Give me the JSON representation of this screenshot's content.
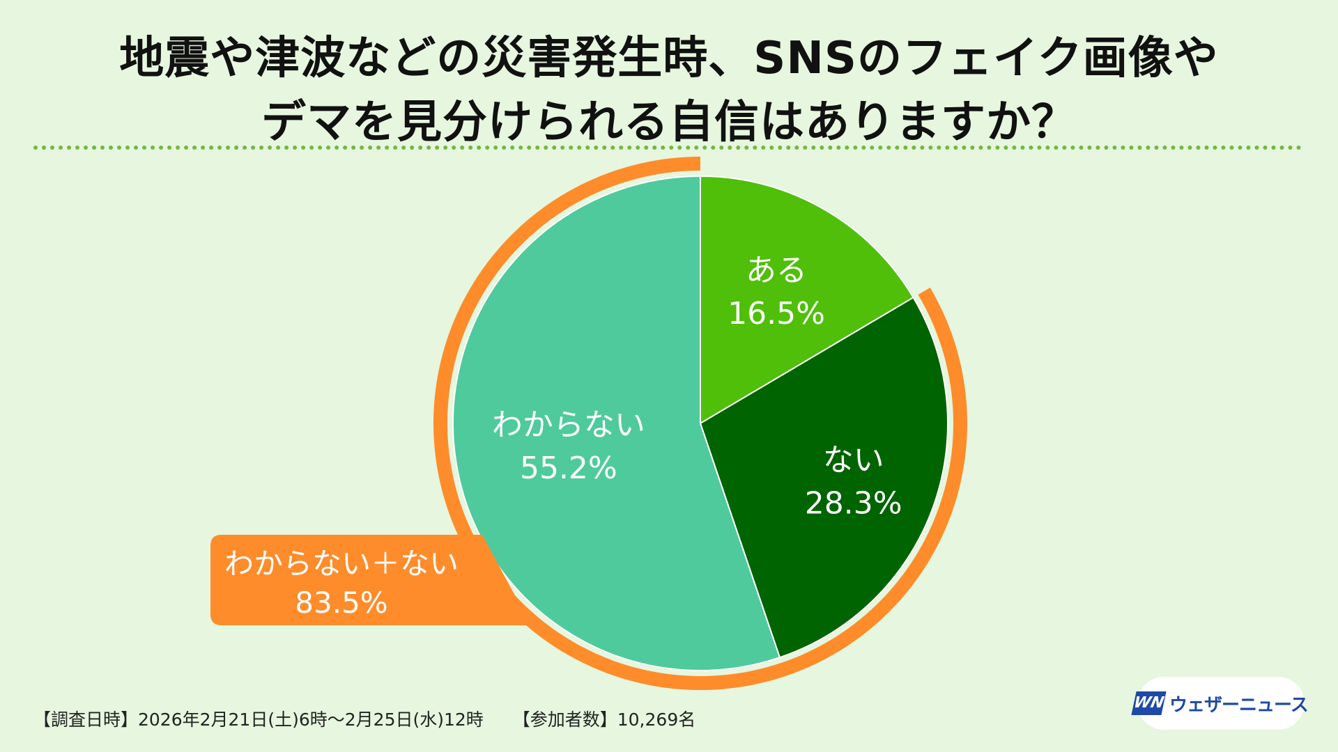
{
  "title": {
    "line1": "地震や津波などの災害発生時、SNSのフェイク画像や",
    "line2": "デマを見分けられる自信はありますか？"
  },
  "chart_data": {
    "type": "pie",
    "slices": [
      {
        "label": "ある",
        "value": 16.5,
        "value_text": "16.5%",
        "color": "#4fbf0a"
      },
      {
        "label": "ない",
        "value": 28.3,
        "value_text": "28.3%",
        "color": "#006400"
      },
      {
        "label": "わからない",
        "value": 55.2,
        "value_text": "55.2%",
        "color": "#4fca9d"
      }
    ],
    "highlight": {
      "label": "わからない＋ない",
      "value": 83.5,
      "value_text": "83.5%",
      "color": "#ff8c2a"
    }
  },
  "footer": {
    "survey_period": "【調査日時】2026年2月21日(土)6時〜2月25日(水)12時",
    "participants": "【参加者数】10,269名"
  },
  "logo": {
    "mark": "WN",
    "text": "ウェザーニュース"
  },
  "colors": {
    "background": "#e6f6df",
    "divider": "#74b743",
    "brand": "#1f49a6"
  }
}
